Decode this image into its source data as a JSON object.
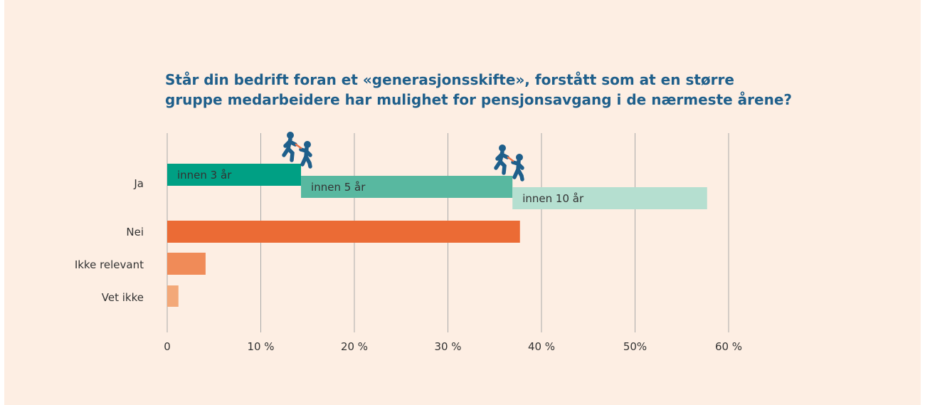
{
  "colors": {
    "background": "#fdeee3",
    "title": "#1f5f8b",
    "grid": "#a9a9a9",
    "text": "#333333",
    "figure": "#1f5f8b",
    "baton": "#e8734a"
  },
  "chart_data": {
    "type": "bar",
    "orientation": "horizontal",
    "title_lines": [
      "Står din bedrift foran et «generasjonsskifte», forstått som at en større",
      "gruppe medarbeidere har mulighet for pensjonsavgang i de nærmeste årene?"
    ],
    "xlim": [
      0,
      60
    ],
    "grid": true,
    "x_ticks": [
      {
        "value": 0,
        "label": "0"
      },
      {
        "value": 10,
        "label": "10 %"
      },
      {
        "value": 20,
        "label": "20 %"
      },
      {
        "value": 30,
        "label": "30 %"
      },
      {
        "value": 40,
        "label": "40 %"
      },
      {
        "value": 50,
        "label": "50%"
      },
      {
        "value": 60,
        "label": "60 %"
      }
    ],
    "categories": [
      "Ja",
      "Nei",
      "Ikke relevant",
      "Vet ikke"
    ],
    "ja_segments": [
      {
        "label": "innen 3 år",
        "start": 0,
        "end": 14.3,
        "color": "#00a084"
      },
      {
        "label": "innen 5 år",
        "start": 14.3,
        "end": 36.9,
        "color": "#58b8a0"
      },
      {
        "label": "innen 10 år",
        "start": 36.9,
        "end": 57.7,
        "color": "#b5dfd0"
      }
    ],
    "other_bars": [
      {
        "category": "Nei",
        "value": 37.7,
        "color": "#eb6b35"
      },
      {
        "category": "Ikke relevant",
        "value": 4.1,
        "color": "#f08b58"
      },
      {
        "category": "Vet ikke",
        "value": 1.2,
        "color": "#f3a878"
      }
    ],
    "icons": [
      "relay-runners-icon",
      "relay-runners-icon"
    ]
  }
}
